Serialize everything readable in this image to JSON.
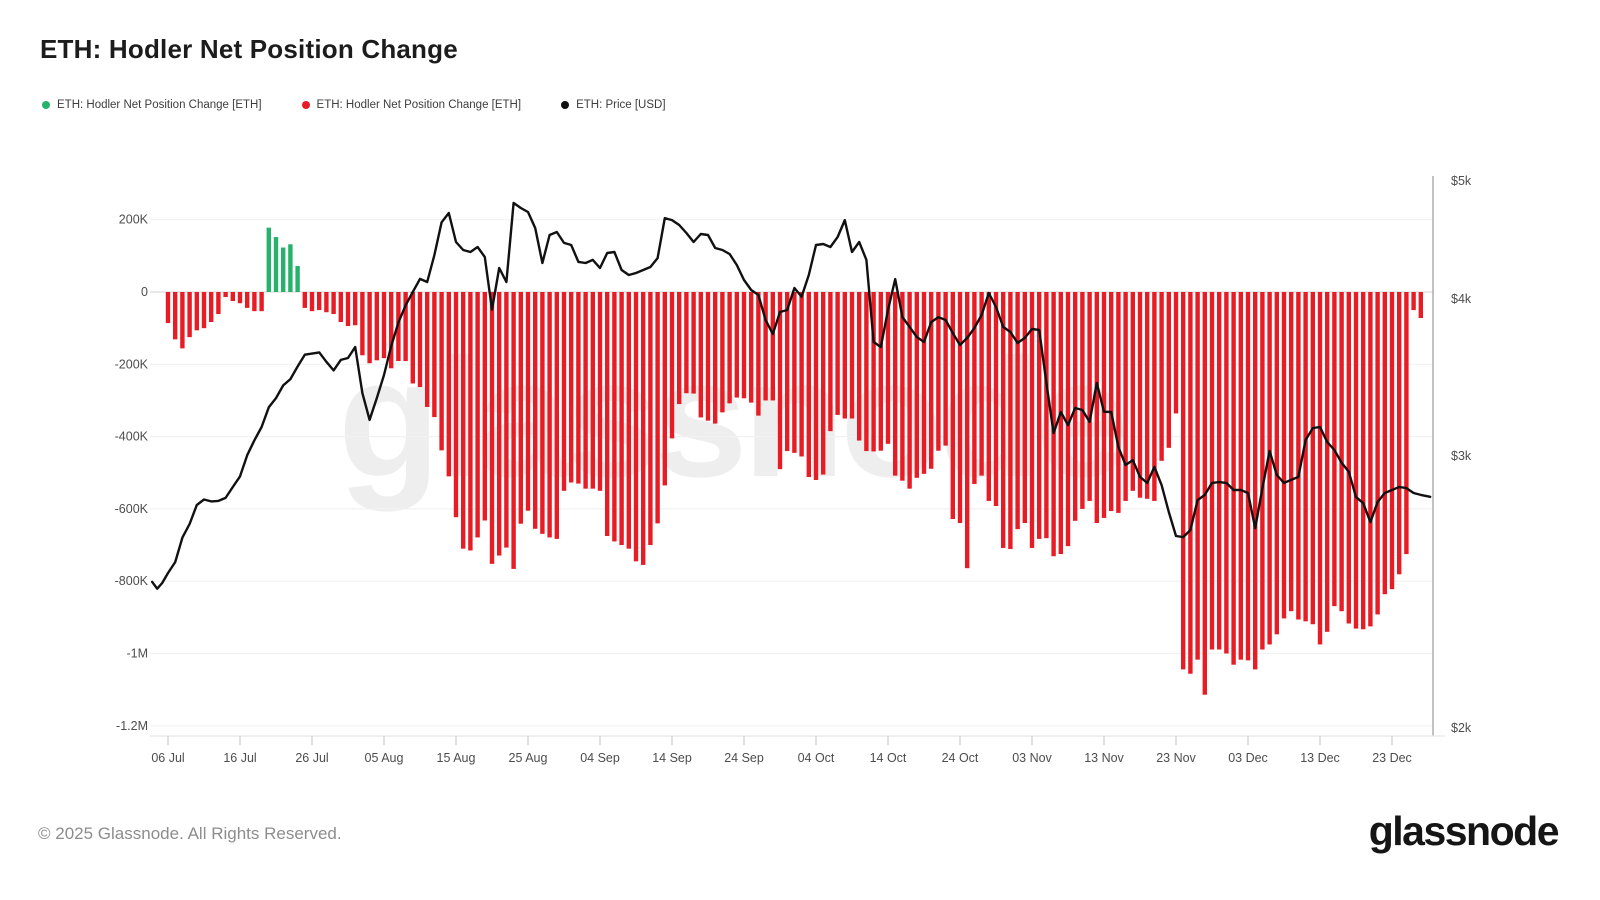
{
  "title": "ETH: Hodler Net Position Change",
  "legend": [
    {
      "label": "ETH: Hodler Net Position Change [ETH]",
      "color": "#26b26a"
    },
    {
      "label": "ETH: Hodler Net Position Change [ETH]",
      "color": "#e81c24"
    },
    {
      "label": "ETH: Price [USD]",
      "color": "#111111"
    }
  ],
  "watermark": "glassnode",
  "footer": {
    "copyright": "© 2025 Glassnode. All Rights Reserved.",
    "logo": "glassnode"
  },
  "chart_data": {
    "type": "bar+line",
    "title": "ETH: Hodler Net Position Change",
    "unit_note": "bar values in thousands of ETH; line is price in USD; x is daily from 06 Jul",
    "x_tick_labels": [
      "06 Jul",
      "16 Jul",
      "26 Jul",
      "05 Aug",
      "15 Aug",
      "25 Aug",
      "04 Sep",
      "14 Sep",
      "24 Sep",
      "04 Oct",
      "14 Oct",
      "24 Oct",
      "03 Nov",
      "13 Nov",
      "23 Nov",
      "03 Dec",
      "13 Dec",
      "23 Dec"
    ],
    "x_tick_day_indices": [
      0,
      10,
      20,
      30,
      40,
      50,
      60,
      70,
      80,
      90,
      100,
      110,
      120,
      130,
      140,
      150,
      160,
      170
    ],
    "left_axis": {
      "tick_labels": [
        "200K",
        "0",
        "-200K",
        "-400K",
        "-600K",
        "-800K",
        "-1M",
        "-1.2M"
      ],
      "tick_values_k": [
        200,
        0,
        -200,
        -400,
        -600,
        -800,
        -1000,
        -1200
      ]
    },
    "right_axis": {
      "tick_labels": [
        "$5k",
        "$4k",
        "$3k",
        "$2k"
      ],
      "tick_values": [
        5000,
        4000,
        3000,
        2000
      ],
      "scale": "logarithmic"
    },
    "series": [
      {
        "name": "ETH: Hodler Net Position Change [ETH]",
        "type": "bar",
        "positive_color": "#26b26a",
        "negative_color": "#e81c24",
        "values_k": [
          -86,
          -131,
          -156,
          -125,
          -106,
          -100,
          -83,
          -61,
          -14,
          -25,
          -31,
          -44,
          -53,
          -53,
          178,
          152,
          123,
          132,
          72,
          -44,
          -53,
          -50,
          -56,
          -61,
          -83,
          -94,
          -92,
          -175,
          -197,
          -189,
          -183,
          -211,
          -191,
          -191,
          -253,
          -263,
          -318,
          -346,
          -438,
          -510,
          -623,
          -710,
          -715,
          -679,
          -632,
          -752,
          -729,
          -707,
          -766,
          -641,
          -605,
          -655,
          -669,
          -679,
          -683,
          -550,
          -527,
          -530,
          -544,
          -544,
          -550,
          -675,
          -690,
          -700,
          -710,
          -745,
          -755,
          -700,
          -640,
          -535,
          -405,
          -310,
          -280,
          -281,
          -347,
          -356,
          -364,
          -333,
          -308,
          -292,
          -294,
          -306,
          -342,
          -300,
          -300,
          -490,
          -440,
          -445,
          -455,
          -512,
          -520,
          -505,
          -385,
          -340,
          -350,
          -350,
          -411,
          -440,
          -441,
          -439,
          -420,
          -508,
          -522,
          -544,
          -514,
          -503,
          -489,
          -439,
          -425,
          -628,
          -639,
          -764,
          -531,
          -508,
          -578,
          -592,
          -708,
          -711,
          -656,
          -639,
          -708,
          -683,
          -681,
          -731,
          -725,
          -703,
          -633,
          -600,
          -578,
          -639,
          -625,
          -606,
          -611,
          -578,
          -550,
          -569,
          -572,
          -578,
          -467,
          -431,
          -336,
          -1044,
          -1056,
          -1017,
          -1114,
          -989,
          -989,
          -1000,
          -1031,
          -1017,
          -1019,
          -1044,
          -989,
          -975,
          -947,
          -903,
          -883,
          -906,
          -911,
          -919,
          -975,
          -940,
          -869,
          -883,
          -917,
          -931,
          -933,
          -925,
          -892,
          -836,
          -822,
          -781,
          -725,
          -50,
          -72
        ]
      },
      {
        "name": "ETH: Price [USD]",
        "type": "line",
        "color": "#111111",
        "points_day_usd": [
          [
            -2.2,
            2537
          ],
          [
            -1.5,
            2512
          ],
          [
            -0.8,
            2533
          ],
          [
            0,
            2570
          ],
          [
            1,
            2610
          ],
          [
            2,
            2700
          ],
          [
            3,
            2750
          ],
          [
            4,
            2820
          ],
          [
            5,
            2840
          ],
          [
            6,
            2833
          ],
          [
            7,
            2835
          ],
          [
            8,
            2846
          ],
          [
            9,
            2886
          ],
          [
            10,
            2925
          ],
          [
            11,
            3005
          ],
          [
            12,
            3100
          ],
          [
            13,
            3185
          ],
          [
            14,
            3310
          ],
          [
            15,
            3369
          ],
          [
            16,
            3450
          ],
          [
            17,
            3490
          ],
          [
            18,
            3570
          ],
          [
            19,
            3645
          ],
          [
            20,
            3652
          ],
          [
            21,
            3660
          ],
          [
            22,
            3600
          ],
          [
            23,
            3545
          ],
          [
            24,
            3612
          ],
          [
            25,
            3624
          ],
          [
            26,
            3694
          ],
          [
            27,
            3400
          ],
          [
            28,
            3230
          ],
          [
            29,
            3369
          ],
          [
            30,
            3516
          ],
          [
            31,
            3700
          ],
          [
            32,
            3850
          ],
          [
            33,
            3960
          ],
          [
            34,
            4060
          ],
          [
            35,
            4170
          ],
          [
            36,
            4144
          ],
          [
            37,
            4373
          ],
          [
            38,
            4650
          ],
          [
            39,
            4729
          ],
          [
            40,
            4483
          ],
          [
            41,
            4415
          ],
          [
            42,
            4398
          ],
          [
            43,
            4441
          ],
          [
            44,
            4356
          ],
          [
            45,
            3932
          ],
          [
            46,
            4263
          ],
          [
            47,
            4144
          ],
          [
            48,
            4814
          ],
          [
            49,
            4771
          ],
          [
            50,
            4737
          ],
          [
            51,
            4602
          ],
          [
            52,
            4305
          ],
          [
            53,
            4542
          ],
          [
            54,
            4568
          ],
          [
            55,
            4475
          ],
          [
            56,
            4458
          ],
          [
            57,
            4314
          ],
          [
            58,
            4305
          ],
          [
            59,
            4331
          ],
          [
            60,
            4263
          ],
          [
            61,
            4390
          ],
          [
            62,
            4398
          ],
          [
            63,
            4246
          ],
          [
            64,
            4203
          ],
          [
            65,
            4220
          ],
          [
            66,
            4246
          ],
          [
            67,
            4271
          ],
          [
            68,
            4347
          ],
          [
            69,
            4686
          ],
          [
            70,
            4669
          ],
          [
            71,
            4627
          ],
          [
            72,
            4559
          ],
          [
            73,
            4483
          ],
          [
            74,
            4551
          ],
          [
            75,
            4542
          ],
          [
            76,
            4432
          ],
          [
            77,
            4415
          ],
          [
            78,
            4381
          ],
          [
            79,
            4288
          ],
          [
            80,
            4161
          ],
          [
            81,
            4076
          ],
          [
            82,
            4034
          ],
          [
            83,
            3866
          ],
          [
            84,
            3777
          ],
          [
            85,
            3917
          ],
          [
            86,
            3930
          ],
          [
            87,
            4093
          ],
          [
            88,
            4019
          ],
          [
            89,
            4203
          ],
          [
            90,
            4458
          ],
          [
            91,
            4466
          ],
          [
            92,
            4441
          ],
          [
            93,
            4525
          ],
          [
            94,
            4669
          ],
          [
            95,
            4398
          ],
          [
            96,
            4483
          ],
          [
            97,
            4331
          ],
          [
            98,
            3726
          ],
          [
            99,
            3694
          ],
          [
            100,
            3930
          ],
          [
            101,
            4169
          ],
          [
            102,
            3885
          ],
          [
            103,
            3822
          ],
          [
            104,
            3758
          ],
          [
            105,
            3726
          ],
          [
            106,
            3853
          ],
          [
            107,
            3885
          ],
          [
            108,
            3866
          ],
          [
            109,
            3783
          ],
          [
            110,
            3707
          ],
          [
            111,
            3752
          ],
          [
            112,
            3815
          ],
          [
            113,
            3898
          ],
          [
            114,
            4051
          ],
          [
            115,
            3949
          ],
          [
            116,
            3822
          ],
          [
            117,
            3790
          ],
          [
            118,
            3720
          ],
          [
            119,
            3752
          ],
          [
            120,
            3809
          ],
          [
            121,
            3803
          ],
          [
            122,
            3465
          ],
          [
            123,
            3146
          ],
          [
            124,
            3280
          ],
          [
            125,
            3197
          ],
          [
            126,
            3306
          ],
          [
            127,
            3293
          ],
          [
            128,
            3217
          ],
          [
            129,
            3465
          ],
          [
            130,
            3282
          ],
          [
            131,
            3280
          ],
          [
            132,
            3057
          ],
          [
            133,
            2967
          ],
          [
            134,
            2985
          ],
          [
            135,
            2923
          ],
          [
            136,
            2901
          ],
          [
            137,
            2960
          ],
          [
            138,
            2893
          ],
          [
            139,
            2794
          ],
          [
            140,
            2706
          ],
          [
            141,
            2702
          ],
          [
            142,
            2728
          ],
          [
            143,
            2838
          ],
          [
            144,
            2857
          ],
          [
            145,
            2901
          ],
          [
            146,
            2904
          ],
          [
            147,
            2901
          ],
          [
            148,
            2875
          ],
          [
            149,
            2875
          ],
          [
            150,
            2864
          ],
          [
            151,
            2735
          ],
          [
            152,
            2882
          ],
          [
            153,
            3032
          ],
          [
            154,
            2930
          ],
          [
            155,
            2901
          ],
          [
            156,
            2912
          ],
          [
            157,
            2923
          ],
          [
            158,
            3102
          ],
          [
            159,
            3178
          ],
          [
            160,
            3185
          ],
          [
            161,
            3089
          ],
          [
            162,
            3038
          ],
          [
            163,
            2975
          ],
          [
            164,
            2942
          ],
          [
            165,
            2849
          ],
          [
            166,
            2827
          ],
          [
            167,
            2757
          ],
          [
            168,
            2831
          ],
          [
            169,
            2864
          ],
          [
            170,
            2875
          ],
          [
            171,
            2886
          ],
          [
            172,
            2882
          ],
          [
            173,
            2864
          ],
          [
            174,
            2857
          ],
          [
            175.3,
            2850
          ]
        ]
      }
    ],
    "layout": {
      "grid": true,
      "legend_position": "top-left"
    }
  }
}
